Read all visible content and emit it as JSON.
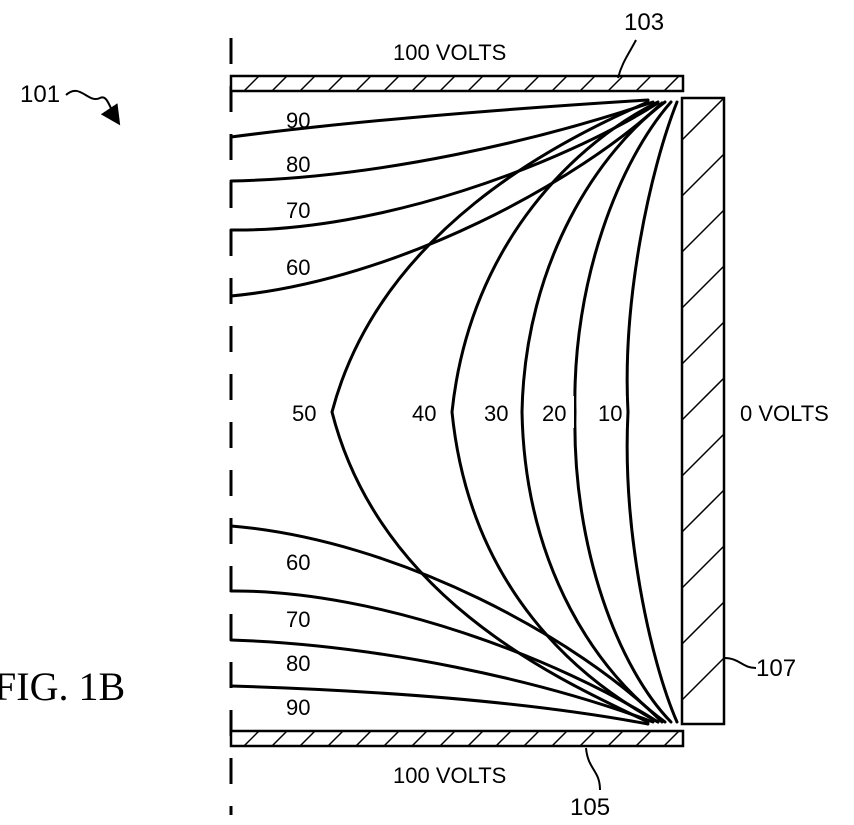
{
  "figure": {
    "caption": "FIG. 1B",
    "device_ref": "101",
    "top_electrode": {
      "ref": "103",
      "voltage_label": "100 VOLTS"
    },
    "bottom_electrode": {
      "ref": "105",
      "voltage_label": "100 VOLTS"
    },
    "side_electrode": {
      "ref": "107",
      "voltage_label": "0 VOLTS"
    },
    "upper_contour_labels": [
      "90",
      "80",
      "70",
      "60"
    ],
    "middle_contour_labels": [
      "50",
      "40",
      "30",
      "20",
      "10"
    ],
    "lower_contour_labels": [
      "60",
      "70",
      "80",
      "90"
    ]
  }
}
